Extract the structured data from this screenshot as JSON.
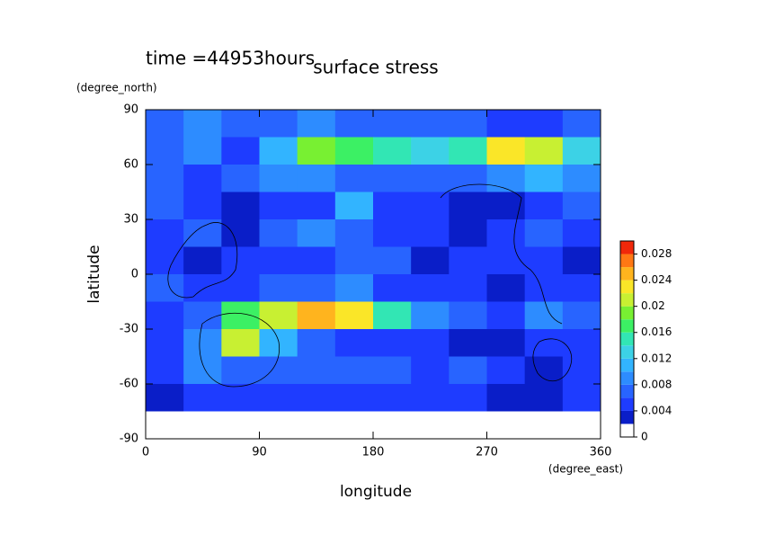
{
  "chart_data": {
    "type": "contour",
    "annotation": "time =44953hours",
    "title": "surface stress",
    "ylabel": "latitude",
    "yunit": "(degree_north)",
    "xlabel": "longitude",
    "xunit": "(degree_east)",
    "xlim": [
      0,
      360
    ],
    "xticks": [
      0,
      90,
      180,
      270,
      360
    ],
    "ylim": [
      -90,
      90
    ],
    "yticks": [
      -90,
      -60,
      -30,
      0,
      30,
      60,
      90
    ],
    "x": [
      15,
      45,
      75,
      105,
      135,
      165,
      195,
      225,
      255,
      285,
      315,
      345
    ],
    "y": [
      82.5,
      67.5,
      52.5,
      37.5,
      22.5,
      7.5,
      -7.5,
      -22.5,
      -37.5,
      -52.5,
      -67.5,
      -82.5
    ],
    "values": [
      [
        0.006,
        0.008,
        0.006,
        0.006,
        0.008,
        0.006,
        0.006,
        0.006,
        0.006,
        0.004,
        0.004,
        0.006
      ],
      [
        0.006,
        0.008,
        0.004,
        0.01,
        0.018,
        0.016,
        0.014,
        0.012,
        0.014,
        0.022,
        0.02,
        0.012
      ],
      [
        0.006,
        0.004,
        0.006,
        0.008,
        0.008,
        0.006,
        0.006,
        0.006,
        0.006,
        0.008,
        0.01,
        0.008
      ],
      [
        0.006,
        0.004,
        0.002,
        0.004,
        0.004,
        0.01,
        0.004,
        0.004,
        0.002,
        0.002,
        0.004,
        0.006
      ],
      [
        0.004,
        0.006,
        0.002,
        0.006,
        0.008,
        0.006,
        0.004,
        0.004,
        0.002,
        0.004,
        0.006,
        0.004
      ],
      [
        0.004,
        0.002,
        0.004,
        0.004,
        0.004,
        0.006,
        0.006,
        0.002,
        0.004,
        0.004,
        0.004,
        0.002
      ],
      [
        0.006,
        0.004,
        0.004,
        0.006,
        0.006,
        0.008,
        0.004,
        0.004,
        0.004,
        0.002,
        0.004,
        0.004
      ],
      [
        0.004,
        0.006,
        0.016,
        0.02,
        0.024,
        0.022,
        0.014,
        0.008,
        0.006,
        0.004,
        0.008,
        0.006
      ],
      [
        0.004,
        0.008,
        0.02,
        0.01,
        0.006,
        0.004,
        0.004,
        0.004,
        0.002,
        0.002,
        0.004,
        0.004
      ],
      [
        0.004,
        0.008,
        0.006,
        0.006,
        0.006,
        0.006,
        0.006,
        0.004,
        0.006,
        0.004,
        0.002,
        0.004
      ],
      [
        0.002,
        0.004,
        0.004,
        0.004,
        0.004,
        0.004,
        0.004,
        0.004,
        0.004,
        0.002,
        0.002,
        0.004
      ],
      [
        0,
        0,
        0,
        0,
        0,
        0,
        0,
        0,
        0,
        0,
        0,
        0
      ]
    ],
    "levels": [
      0,
      0.002,
      0.004,
      0.006,
      0.008,
      0.01,
      0.012,
      0.014,
      0.016,
      0.018,
      0.02,
      0.022,
      0.024,
      0.026,
      0.028,
      0.03
    ],
    "colors": [
      "#ffffff",
      "#0a1ec8",
      "#1e3cff",
      "#2864ff",
      "#2d8cff",
      "#32b4ff",
      "#3cd2e6",
      "#32e6b4",
      "#3cf064",
      "#78f032",
      "#c8f032",
      "#fae628",
      "#ffb41e",
      "#ff7814",
      "#f0280a"
    ],
    "cbticks": [
      0,
      0.004,
      0.008,
      0.012,
      0.016,
      0.02,
      0.024,
      0.028
    ]
  }
}
